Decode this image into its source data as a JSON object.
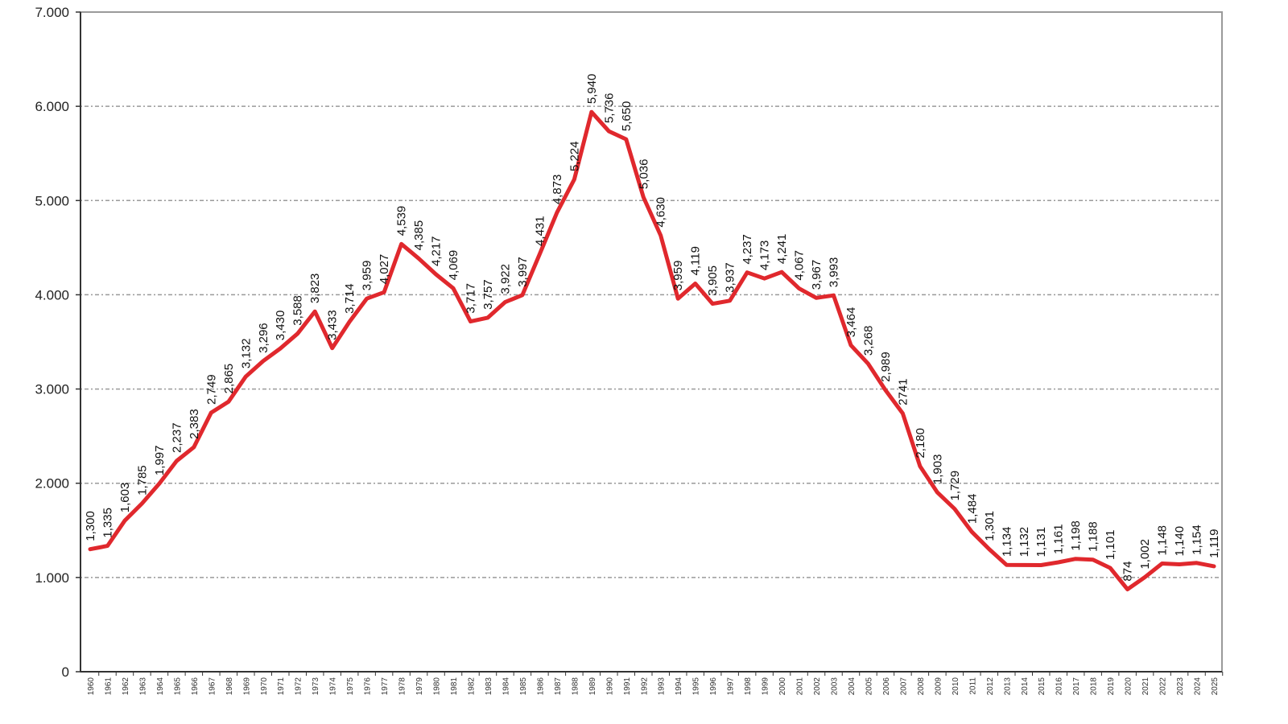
{
  "chart_data": {
    "type": "line",
    "title": "",
    "xlabel": "",
    "ylabel": "",
    "ylim": [
      0,
      7000
    ],
    "yticks": [
      0,
      1000,
      2000,
      3000,
      4000,
      5000,
      6000,
      7000
    ],
    "ytick_labels": [
      "0",
      "1.000",
      "2.000",
      "3.000",
      "4.000",
      "5.000",
      "6.000",
      "7.000"
    ],
    "grid": "horizontal dotted",
    "legend": "none",
    "line_color": "#e0282d",
    "x": [
      1960,
      1961,
      1962,
      1963,
      1964,
      1965,
      1966,
      1967,
      1968,
      1969,
      1970,
      1971,
      1972,
      1973,
      1974,
      1975,
      1976,
      1977,
      1978,
      1979,
      1980,
      1981,
      1982,
      1983,
      1984,
      1985,
      1986,
      1987,
      1988,
      1989,
      1990,
      1991,
      1992,
      1993,
      1994,
      1995,
      1996,
      1997,
      1998,
      1999,
      2000,
      2001,
      2002,
      2003,
      2004,
      2005,
      2006,
      2007,
      2008,
      2009,
      2010,
      2011,
      2012,
      2013,
      2014,
      2015,
      2016,
      2017,
      2018,
      2019,
      2020,
      2021,
      2022,
      2023,
      2024,
      2025
    ],
    "series": [
      {
        "name": "values",
        "values": [
          1300,
          1335,
          1603,
          1785,
          1997,
          2237,
          2383,
          2749,
          2865,
          3132,
          3296,
          3430,
          3588,
          3823,
          3433,
          3714,
          3959,
          4027,
          4539,
          4385,
          4217,
          4069,
          3717,
          3757,
          3922,
          3997,
          4431,
          4873,
          5224,
          5940,
          5736,
          5650,
          5036,
          4630,
          3959,
          4119,
          3905,
          3937,
          4237,
          4173,
          4241,
          4067,
          3967,
          3993,
          3464,
          3268,
          2989,
          2741,
          2180,
          1903,
          1729,
          1484,
          1301,
          1134,
          1132,
          1131,
          1161,
          1198,
          1188,
          1101,
          874,
          1002,
          1148,
          1140,
          1154,
          1119
        ],
        "labels": [
          "1,300",
          "1,335",
          "1,603",
          "1,785",
          "1,997",
          "2,237",
          "2,383",
          "2,749",
          "2,865",
          "3,132",
          "3,296",
          "3,430",
          "3,588",
          "3,823",
          "3,433",
          "3,714",
          "3,959",
          "4,027",
          "4,539",
          "4,385",
          "4,217",
          "4,069",
          "3,717",
          "3,757",
          "3,922",
          "3,997",
          "4,431",
          "4,873",
          "5,224",
          "5,940",
          "5,736",
          "5,650",
          "5,036",
          "4,630",
          "3,959",
          "4,119",
          "3,905",
          "3,937",
          "4,237",
          "4,173",
          "4,241",
          "4,067",
          "3,967",
          "3,993",
          "3,464",
          "3,268",
          "2,989",
          "2741",
          "2,180",
          "1,903",
          "1,729",
          "1,484",
          "1,301",
          "1,134",
          "1,132",
          "1,131",
          "1,161",
          "1,198",
          "1,188",
          "1,101",
          "874",
          "1,002",
          "1,148",
          "1,140",
          "1,154",
          "1,119"
        ]
      }
    ]
  }
}
